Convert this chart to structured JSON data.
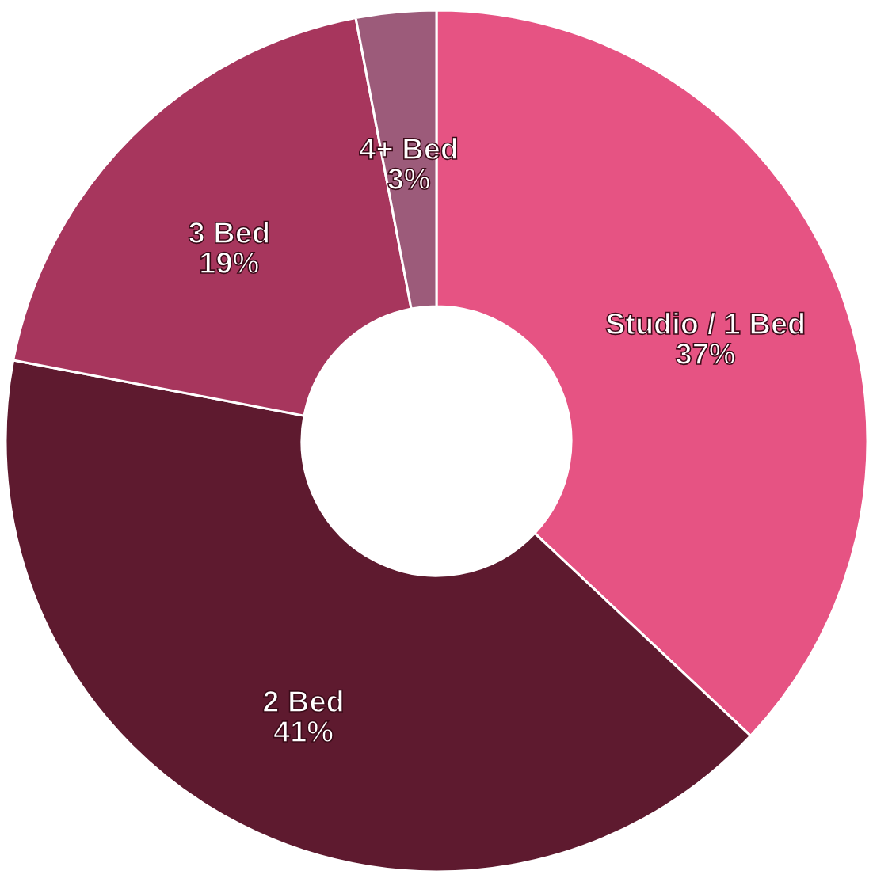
{
  "chart_data": {
    "type": "donut",
    "categories": [
      "Studio / 1 Bed",
      "2 Bed",
      "3 Bed",
      "4+ Bed"
    ],
    "values": [
      37,
      41,
      19,
      3
    ],
    "colors": [
      "#e65383",
      "#5e1a2f",
      "#a7365d",
      "#9c5b7a"
    ],
    "value_labels": [
      "37%",
      "41%",
      "19%",
      "3%"
    ]
  }
}
